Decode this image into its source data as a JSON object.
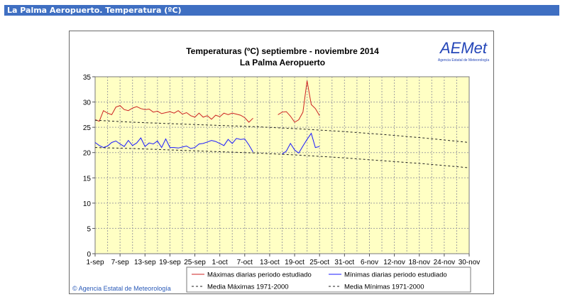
{
  "header": {
    "title": "La Palma Aeropuerto. Temperatura (ºC)"
  },
  "logo": {
    "brand": "AEMet",
    "tagline": "Agencia Estatal de Meteorología"
  },
  "footer": {
    "copyright": "© Agencia Estatal de Meteorología"
  },
  "colors": {
    "header_bg": "#3f6fc2",
    "plot_bg": "#ffffc4",
    "max_series": "#cc2222",
    "min_series": "#1a1aff",
    "grid": "#a0a0a0"
  },
  "chart_data": {
    "type": "line",
    "title": "Temperaturas (ºC) septiembre - noviembre 2014",
    "subtitle": "La Palma Aeropuerto",
    "xlabel": "",
    "ylabel": "",
    "ylim": [
      0,
      35
    ],
    "y_ticks": [
      0,
      5,
      10,
      15,
      20,
      25,
      30,
      35
    ],
    "xlim": [
      1,
      91
    ],
    "x_ticks": [
      {
        "day": 1,
        "label": "1-sep"
      },
      {
        "day": 7,
        "label": "7-sep"
      },
      {
        "day": 13,
        "label": "13-sep"
      },
      {
        "day": 19,
        "label": "19-sep"
      },
      {
        "day": 25,
        "label": "25-sep"
      },
      {
        "day": 31,
        "label": "1-oct"
      },
      {
        "day": 37,
        "label": "7-oct"
      },
      {
        "day": 43,
        "label": "13-oct"
      },
      {
        "day": 49,
        "label": "19-oct"
      },
      {
        "day": 55,
        "label": "25-oct"
      },
      {
        "day": 61,
        "label": "31-oct"
      },
      {
        "day": 67,
        "label": "6-nov"
      },
      {
        "day": 73,
        "label": "12-nov"
      },
      {
        "day": 79,
        "label": "18-nov"
      },
      {
        "day": 85,
        "label": "24-nov"
      },
      {
        "day": 91,
        "label": "30-nov"
      }
    ],
    "grid": true,
    "legend_position": "bottom",
    "series": [
      {
        "name": "Máximas diarias periodo estudiado",
        "style": "solid",
        "color": "#cc2222",
        "segments": [
          [
            [
              1,
              26.5
            ],
            [
              2,
              26.2
            ],
            [
              3,
              28.3
            ],
            [
              4,
              27.8
            ],
            [
              5,
              27.5
            ],
            [
              6,
              29.0
            ],
            [
              7,
              29.3
            ],
            [
              8,
              28.5
            ],
            [
              9,
              28.3
            ],
            [
              10,
              28.8
            ],
            [
              11,
              29.1
            ],
            [
              12,
              28.7
            ],
            [
              13,
              28.5
            ],
            [
              14,
              28.6
            ],
            [
              15,
              28.0
            ],
            [
              16,
              28.2
            ],
            [
              17,
              27.7
            ],
            [
              18,
              27.9
            ],
            [
              19,
              28.1
            ],
            [
              20,
              27.8
            ],
            [
              21,
              28.3
            ],
            [
              22,
              27.6
            ],
            [
              23,
              27.9
            ],
            [
              24,
              27.3
            ],
            [
              25,
              27.0
            ],
            [
              26,
              27.8
            ],
            [
              27,
              27.0
            ],
            [
              28,
              27.3
            ],
            [
              29,
              26.6
            ],
            [
              30,
              27.4
            ],
            [
              31,
              27.1
            ],
            [
              32,
              27.8
            ],
            [
              33,
              27.5
            ],
            [
              34,
              27.8
            ],
            [
              35,
              27.6
            ],
            [
              36,
              27.4
            ],
            [
              37,
              26.9
            ],
            [
              38,
              26.0
            ],
            [
              39,
              26.8
            ]
          ],
          [
            [
              45,
              27.5
            ],
            [
              46,
              28.0
            ],
            [
              47,
              28.1
            ],
            [
              48,
              27.2
            ],
            [
              49,
              26.0
            ],
            [
              50,
              26.5
            ],
            [
              51,
              28.0
            ],
            [
              52,
              34.2
            ],
            [
              53,
              29.5
            ],
            [
              54,
              28.7
            ],
            [
              55,
              27.3
            ]
          ]
        ]
      },
      {
        "name": "Mínimas diarias periodo estudiado",
        "style": "solid",
        "color": "#1a1aff",
        "segments": [
          [
            [
              1,
              22.0
            ],
            [
              2,
              21.4
            ],
            [
              3,
              21.0
            ],
            [
              4,
              21.3
            ],
            [
              5,
              22.0
            ],
            [
              6,
              22.3
            ],
            [
              7,
              21.7
            ],
            [
              8,
              21.2
            ],
            [
              9,
              22.4
            ],
            [
              10,
              21.4
            ],
            [
              11,
              21.9
            ],
            [
              12,
              22.9
            ],
            [
              13,
              21.2
            ],
            [
              14,
              21.9
            ],
            [
              15,
              21.7
            ],
            [
              16,
              22.3
            ],
            [
              17,
              21.0
            ],
            [
              18,
              22.7
            ],
            [
              19,
              21.0
            ],
            [
              20,
              21.0
            ],
            [
              21,
              20.9
            ],
            [
              22,
              21.1
            ],
            [
              23,
              21.3
            ],
            [
              24,
              20.8
            ],
            [
              25,
              21.0
            ],
            [
              26,
              21.7
            ],
            [
              27,
              21.8
            ],
            [
              28,
              22.1
            ],
            [
              29,
              22.4
            ],
            [
              30,
              22.2
            ],
            [
              31,
              21.8
            ],
            [
              32,
              21.4
            ],
            [
              33,
              22.6
            ],
            [
              34,
              21.8
            ],
            [
              35,
              22.8
            ],
            [
              36,
              22.6
            ],
            [
              37,
              22.7
            ],
            [
              38,
              21.5
            ],
            [
              39,
              20.1
            ]
          ],
          [
            [
              46,
              19.7
            ],
            [
              47,
              20.3
            ],
            [
              48,
              21.8
            ],
            [
              49,
              20.5
            ],
            [
              50,
              19.9
            ],
            [
              51,
              21.3
            ],
            [
              52,
              22.6
            ],
            [
              53,
              23.8
            ],
            [
              54,
              21.0
            ],
            [
              55,
              21.2
            ]
          ]
        ]
      },
      {
        "name": "Media Máximas 1971-2000",
        "style": "dashed",
        "color": "#222222",
        "segments": [
          [
            [
              1,
              26.4
            ],
            [
              10,
              26.0
            ],
            [
              20,
              25.7
            ],
            [
              30,
              25.4
            ],
            [
              40,
              25.1
            ],
            [
              50,
              24.7
            ],
            [
              60,
              24.2
            ],
            [
              70,
              23.6
            ],
            [
              80,
              22.9
            ],
            [
              91,
              22.0
            ]
          ]
        ]
      },
      {
        "name": "Media Mínimas 1971-2000",
        "style": "dashed",
        "color": "#222222",
        "segments": [
          [
            [
              1,
              21.0
            ],
            [
              10,
              20.8
            ],
            [
              20,
              20.5
            ],
            [
              30,
              20.2
            ],
            [
              40,
              19.9
            ],
            [
              50,
              19.5
            ],
            [
              60,
              19.0
            ],
            [
              70,
              18.4
            ],
            [
              80,
              17.8
            ],
            [
              91,
              17.0
            ]
          ]
        ]
      }
    ]
  }
}
